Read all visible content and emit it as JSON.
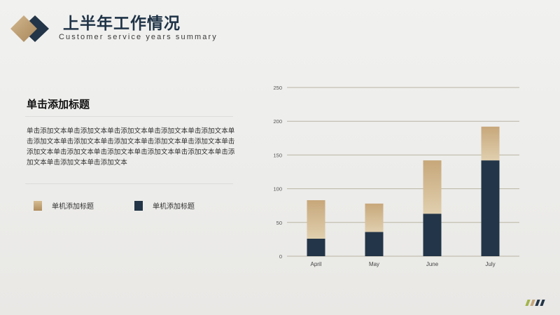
{
  "header": {
    "title": "上半年工作情况",
    "subtitle": "Customer service years summary"
  },
  "content": {
    "heading": "单击添加标题",
    "body": "单击添加文本单击添加文本单击添加文本单击添加文本单击添加文本单击添加文本单击添加文本单击添加文本单击添加文本单击添加文本单击添加文本单击添加文本单击添加文本单击添加文本单击添加文本单击添加文本单击添加文本单击添加文本"
  },
  "legend": [
    {
      "label": "单机添加标题",
      "color": "#c3a47a"
    },
    {
      "label": "单机添加标题",
      "color": "#233548"
    }
  ],
  "colors": {
    "accent_gold": "#b89566",
    "accent_navy": "#233548",
    "footer_marks": [
      "#a3b54a",
      "#c3a47a",
      "#233548",
      "#233548"
    ]
  },
  "chart_data": {
    "type": "bar",
    "stacked": true,
    "categories": [
      "April",
      "May",
      "June",
      "July"
    ],
    "series": [
      {
        "values": [
          26,
          36,
          63,
          142
        ],
        "color": "#233548"
      },
      {
        "values": [
          57,
          42,
          79,
          50
        ],
        "color": "#c3a47a"
      }
    ],
    "ylim": [
      0,
      250
    ],
    "yticks": [
      0,
      50,
      100,
      150,
      200,
      250
    ],
    "grid": true
  }
}
